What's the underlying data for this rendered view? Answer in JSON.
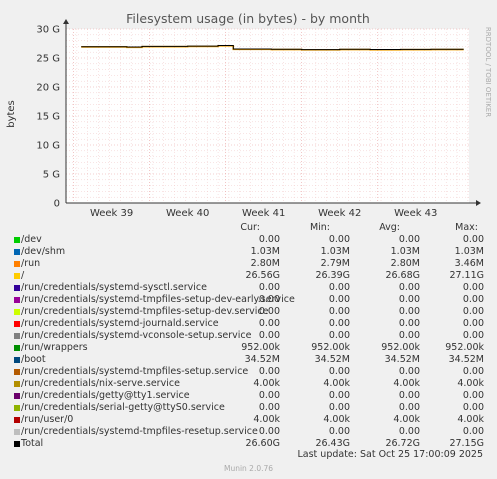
{
  "chart_data": {
    "type": "line",
    "title": "Filesystem usage (in bytes) - by month",
    "ylabel": "bytes",
    "side_label": "RRDTOOL / TOBI OETIKER",
    "ylim": [
      0,
      30000000000
    ],
    "yticks": [
      "0",
      "5 G",
      "10 G",
      "15 G",
      "20 G",
      "25 G",
      "30 G"
    ],
    "xticks": [
      "Week 39",
      "Week 40",
      "Week 41",
      "Week 42",
      "Week 43"
    ],
    "series": [
      {
        "name": "/",
        "color": "#f0a000",
        "x_weeks": [
          38.6,
          39.2,
          39.4,
          40.0,
          40.4,
          40.6,
          41.1,
          41.5,
          42.0,
          42.4,
          42.8,
          43.2,
          43.6
        ],
        "values": [
          26900000000,
          26850000000,
          26950000000,
          27000000000,
          27100000000,
          26500000000,
          26450000000,
          26400000000,
          26450000000,
          26420000000,
          26440000000,
          26450000000,
          26450000000
        ]
      },
      {
        "name": "Total",
        "color": "#000000",
        "x_weeks": [
          38.6,
          39.2,
          39.4,
          40.0,
          40.4,
          40.6,
          41.1,
          41.5,
          42.0,
          42.4,
          42.8,
          43.2,
          43.6
        ],
        "values": [
          26950000000,
          26900000000,
          27000000000,
          27050000000,
          27150000000,
          26550000000,
          26500000000,
          26450000000,
          26500000000,
          26470000000,
          26490000000,
          26500000000,
          26500000000
        ]
      }
    ]
  },
  "legend": {
    "headers": {
      "cur": "Cur:",
      "min": "Min:",
      "avg": "Avg:",
      "max": "Max:"
    },
    "rows": [
      {
        "name": "/dev",
        "color": "#00cc00",
        "cur": "0.00",
        "min": "0.00",
        "avg": "0.00",
        "max": "0.00"
      },
      {
        "name": "/dev/shm",
        "color": "#0066b3",
        "cur": "1.03M",
        "min": "1.03M",
        "avg": "1.03M",
        "max": "1.03M"
      },
      {
        "name": "/run",
        "color": "#ff8000",
        "cur": "2.80M",
        "min": "2.79M",
        "avg": "2.80M",
        "max": "3.46M"
      },
      {
        "name": "/",
        "color": "#ffcc00",
        "cur": "26.56G",
        "min": "26.39G",
        "avg": "26.68G",
        "max": "27.11G"
      },
      {
        "name": "/run/credentials/systemd-sysctl.service",
        "color": "#330099",
        "cur": "0.00",
        "min": "0.00",
        "avg": "0.00",
        "max": "0.00"
      },
      {
        "name": "/run/credentials/systemd-tmpfiles-setup-dev-early.service",
        "color": "#990099",
        "cur": "0.00",
        "min": "0.00",
        "avg": "0.00",
        "max": "0.00"
      },
      {
        "name": "/run/credentials/systemd-tmpfiles-setup-dev.service",
        "color": "#ccff00",
        "cur": "0.00",
        "min": "0.00",
        "avg": "0.00",
        "max": "0.00"
      },
      {
        "name": "/run/credentials/systemd-journald.service",
        "color": "#ff0000",
        "cur": "0.00",
        "min": "0.00",
        "avg": "0.00",
        "max": "0.00"
      },
      {
        "name": "/run/credentials/systemd-vconsole-setup.service",
        "color": "#808080",
        "cur": "0.00",
        "min": "0.00",
        "avg": "0.00",
        "max": "0.00"
      },
      {
        "name": "/run/wrappers",
        "color": "#008f00",
        "cur": "952.00k",
        "min": "952.00k",
        "avg": "952.00k",
        "max": "952.00k"
      },
      {
        "name": "/boot",
        "color": "#00487d",
        "cur": "34.52M",
        "min": "34.52M",
        "avg": "34.52M",
        "max": "34.52M"
      },
      {
        "name": "/run/credentials/systemd-tmpfiles-setup.service",
        "color": "#b35a00",
        "cur": "0.00",
        "min": "0.00",
        "avg": "0.00",
        "max": "0.00"
      },
      {
        "name": "/run/credentials/nix-serve.service",
        "color": "#b38f00",
        "cur": "4.00k",
        "min": "4.00k",
        "avg": "4.00k",
        "max": "4.00k"
      },
      {
        "name": "/run/credentials/getty@tty1.service",
        "color": "#6b006b",
        "cur": "0.00",
        "min": "0.00",
        "avg": "0.00",
        "max": "0.00"
      },
      {
        "name": "/run/credentials/serial-getty@ttyS0.service",
        "color": "#8fb300",
        "cur": "0.00",
        "min": "0.00",
        "avg": "0.00",
        "max": "0.00"
      },
      {
        "name": "/run/user/0",
        "color": "#b30000",
        "cur": "4.00k",
        "min": "4.00k",
        "avg": "4.00k",
        "max": "4.00k"
      },
      {
        "name": "/run/credentials/systemd-tmpfiles-resetup.service",
        "color": "#bebebe",
        "cur": "0.00",
        "min": "0.00",
        "avg": "0.00",
        "max": "0.00"
      },
      {
        "name": "Total",
        "color": "#000000",
        "cur": "26.60G",
        "min": "26.43G",
        "avg": "26.72G",
        "max": "27.15G"
      }
    ]
  },
  "last_update": "Last update: Sat Oct 25 17:00:09 2025",
  "footer": "Munin 2.0.76"
}
